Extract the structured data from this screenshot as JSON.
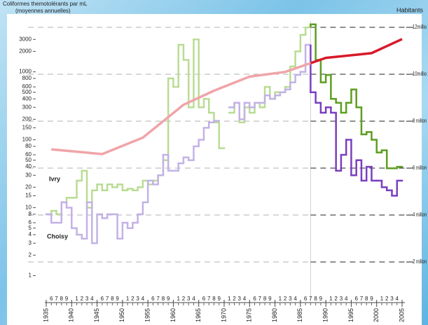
{
  "chart_data": {
    "type": "step",
    "title": "Coliformes themotolérants par mL",
    "subtitle": "(moyennes annuelles)",
    "log_scale": true,
    "split_x": 1987,
    "xlim": [
      1935,
      2005
    ],
    "xticks": [
      1935,
      1940,
      1945,
      1950,
      1955,
      1960,
      1965,
      1970,
      1975,
      1980,
      1985,
      1990,
      1995,
      2000,
      2005
    ],
    "xminorticks": [
      {
        "value": 1936,
        "label": "6"
      },
      {
        "value": 1937,
        "label": "7"
      },
      {
        "value": 1938,
        "label": "8"
      },
      {
        "value": 1939,
        "label": "9"
      },
      {
        "value": 1941,
        "label": "1"
      },
      {
        "value": 1942,
        "label": "2"
      },
      {
        "value": 1943,
        "label": "3"
      },
      {
        "value": 1944,
        "label": "4"
      },
      {
        "value": 1946,
        "label": "6"
      },
      {
        "value": 1947,
        "label": "7"
      },
      {
        "value": 1948,
        "label": "8"
      },
      {
        "value": 1949,
        "label": "9"
      },
      {
        "value": 1951,
        "label": "1"
      },
      {
        "value": 1952,
        "label": "2"
      },
      {
        "value": 1953,
        "label": "3"
      },
      {
        "value": 1954,
        "label": "4"
      },
      {
        "value": 1956,
        "label": "6"
      },
      {
        "value": 1957,
        "label": "7"
      },
      {
        "value": 1958,
        "label": "8"
      },
      {
        "value": 1959,
        "label": "9"
      },
      {
        "value": 1961,
        "label": "1"
      },
      {
        "value": 1962,
        "label": "2"
      },
      {
        "value": 1963,
        "label": "3"
      },
      {
        "value": 1964,
        "label": "4"
      },
      {
        "value": 1966,
        "label": "6"
      },
      {
        "value": 1967,
        "label": "7"
      },
      {
        "value": 1968,
        "label": "8"
      },
      {
        "value": 1969,
        "label": "9"
      },
      {
        "value": 1971,
        "label": "1"
      },
      {
        "value": 1972,
        "label": "2"
      },
      {
        "value": 1973,
        "label": "3"
      },
      {
        "value": 1974,
        "label": "4"
      },
      {
        "value": 1976,
        "label": "6"
      },
      {
        "value": 1977,
        "label": "7"
      },
      {
        "value": 1978,
        "label": "8"
      },
      {
        "value": 1979,
        "label": "9"
      },
      {
        "value": 1981,
        "label": "1"
      },
      {
        "value": 1982,
        "label": "2"
      },
      {
        "value": 1983,
        "label": "3"
      },
      {
        "value": 1984,
        "label": "4"
      },
      {
        "value": 1986,
        "label": "6"
      },
      {
        "value": 1987,
        "label": "7"
      },
      {
        "value": 1988,
        "label": "8"
      },
      {
        "value": 1989,
        "label": "9"
      },
      {
        "value": 1991,
        "label": "1"
      },
      {
        "value": 1992,
        "label": "2"
      },
      {
        "value": 1993,
        "label": "3"
      },
      {
        "value": 1994,
        "label": "4"
      },
      {
        "value": 1996,
        "label": "6"
      },
      {
        "value": 1997,
        "label": "7"
      },
      {
        "value": 1998,
        "label": "8"
      },
      {
        "value": 1999,
        "label": "9"
      },
      {
        "value": 2001,
        "label": "1"
      },
      {
        "value": 2002,
        "label": "2"
      },
      {
        "value": 2003,
        "label": "3"
      },
      {
        "value": 2004,
        "label": "4"
      }
    ],
    "ylim": [
      0.42,
      5600
    ],
    "yticks": [
      1,
      2,
      3,
      4,
      5,
      6,
      8,
      10,
      15,
      20,
      30,
      40,
      50,
      60,
      80,
      100,
      150,
      200,
      300,
      400,
      500,
      600,
      800,
      1000,
      2000,
      3000
    ],
    "y2lim": [
      0.33,
      12.27
    ],
    "y2ticks": [
      {
        "value": 2,
        "label": "2 millon"
      },
      {
        "value": 4,
        "label": "4 millon"
      },
      {
        "value": 6,
        "label": "6 millon"
      },
      {
        "value": 8,
        "label": "8 millon"
      },
      {
        "value": 10,
        "label": "10millio"
      },
      {
        "value": 12,
        "label": "12millio"
      }
    ],
    "grid": true,
    "series": [
      {
        "name": "Ivry",
        "color": "#b9dc94",
        "color_recent": "#5c9e1f",
        "x": [
          1935,
          1936,
          1937,
          1938,
          1939,
          1940,
          1941,
          1942,
          1943,
          1944,
          1945,
          1946,
          1947,
          1948,
          1949,
          1950,
          1951,
          1952,
          1953,
          1954,
          1955,
          1956,
          1957,
          1958,
          1959,
          1960,
          1961,
          1962,
          1963,
          1964,
          1965,
          1966,
          1967,
          1968,
          1969,
          1970,
          1971,
          1972,
          1973,
          1974,
          1975,
          1976,
          1977,
          1978,
          1979,
          1980,
          1981,
          1982,
          1983,
          1984,
          1985,
          1986,
          1987,
          1988,
          1989,
          1990,
          1991,
          1992,
          1993,
          1994,
          1995,
          1996,
          1997,
          1998,
          1999,
          2000,
          2001,
          2002,
          2003,
          2004
        ],
        "values": [
          8,
          9,
          8,
          12,
          14,
          14,
          25,
          35,
          10,
          18,
          22,
          18,
          22,
          20,
          22,
          18,
          19,
          18,
          20,
          25,
          22,
          25,
          30,
          50,
          800,
          600,
          2500,
          1500,
          300,
          3000,
          300,
          400,
          250,
          180,
          75,
          null,
          250,
          350,
          180,
          300,
          250,
          350,
          300,
          600,
          400,
          500,
          500,
          600,
          1200,
          2000,
          3500,
          4500,
          5000,
          1500,
          700,
          900,
          400,
          350,
          250,
          350,
          550,
          300,
          120,
          130,
          100,
          65,
          70,
          38,
          38,
          40
        ]
      },
      {
        "name": "Choisy",
        "color": "#c3b2e6",
        "color_recent": "#7a3fc0",
        "x": [
          1935,
          1936,
          1937,
          1938,
          1939,
          1940,
          1941,
          1942,
          1943,
          1944,
          1945,
          1946,
          1947,
          1948,
          1949,
          1950,
          1951,
          1952,
          1953,
          1954,
          1955,
          1956,
          1957,
          1958,
          1959,
          1960,
          1961,
          1962,
          1963,
          1964,
          1965,
          1966,
          1967,
          1968,
          1969,
          1970,
          1971,
          1972,
          1973,
          1974,
          1975,
          1976,
          1977,
          1978,
          1979,
          1980,
          1981,
          1982,
          1983,
          1984,
          1985,
          1986,
          1987,
          1988,
          1989,
          1990,
          1991,
          1992,
          1993,
          1994,
          1995,
          1996,
          1997,
          1998,
          1999,
          2000,
          2001,
          2002,
          2003,
          2004
        ],
        "values": [
          8,
          6,
          6,
          12,
          10,
          5,
          4,
          3.5,
          12,
          3,
          8,
          7,
          8,
          8,
          3.5,
          6,
          5,
          6,
          8,
          12,
          25,
          22,
          30,
          60,
          35,
          35,
          45,
          55,
          50,
          80,
          100,
          150,
          180,
          190,
          null,
          null,
          300,
          350,
          200,
          350,
          300,
          350,
          350,
          450,
          400,
          450,
          500,
          550,
          700,
          900,
          1000,
          2500,
          500,
          350,
          250,
          300,
          250,
          35,
          60,
          100,
          30,
          50,
          25,
          40,
          25,
          25,
          20,
          18,
          15,
          25
        ]
      },
      {
        "name": "Habitants",
        "axis": "y2",
        "color": "#f0a4a8",
        "color_recent": "#d8192a",
        "x": [
          1936,
          1946,
          1954,
          1962,
          1968,
          1975,
          1982,
          1990,
          1999,
          2005
        ],
        "values": [
          6.8,
          6.6,
          7.3,
          8.7,
          9.3,
          9.9,
          10.1,
          10.7,
          10.9,
          11.5
        ]
      }
    ]
  }
}
